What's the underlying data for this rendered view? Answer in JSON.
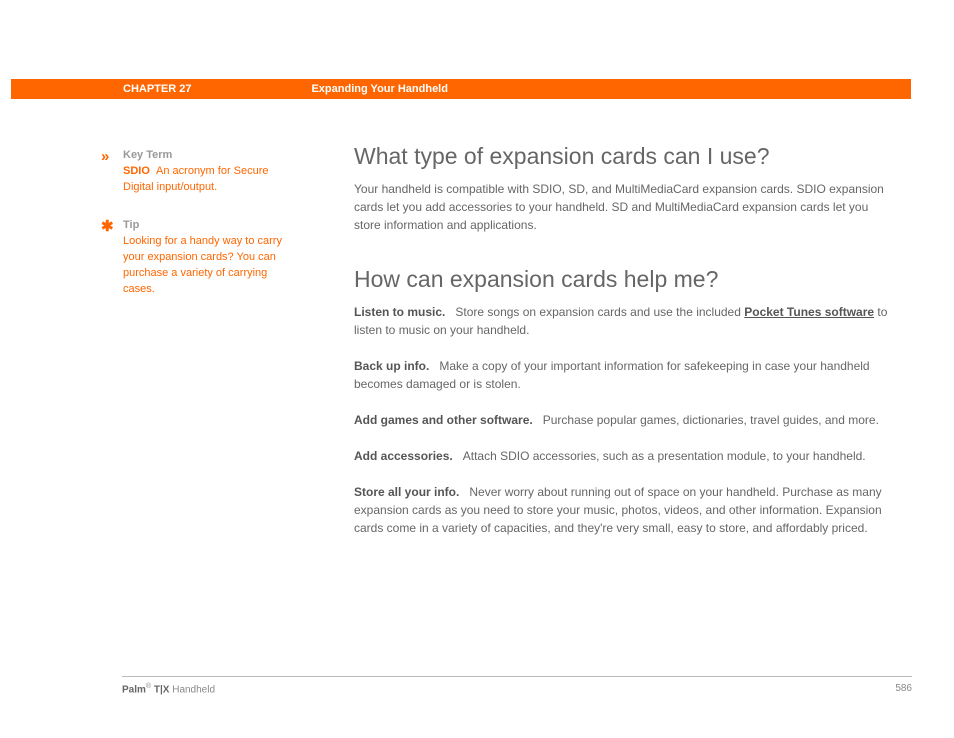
{
  "colors": {
    "accent": "#ff6600",
    "header_bg": "#ff6600",
    "header_text": "#ffffff",
    "body_text": "#666666",
    "muted_text": "#999999",
    "link_text": "#555555",
    "rule": "#bbbbbb",
    "background": "#ffffff"
  },
  "header": {
    "chapter_label": "CHAPTER 27",
    "chapter_title": "Expanding Your Handheld"
  },
  "sidebar": {
    "key_term": {
      "icon": "»",
      "label": "Key Term",
      "term": "SDIO",
      "definition": "An acronym for Secure Digital input/output."
    },
    "tip": {
      "icon": "✱",
      "label": "Tip",
      "body": "Looking for a handy way to carry your expansion cards? You can purchase a variety of carrying cases."
    }
  },
  "main": {
    "section1": {
      "heading": "What type of expansion cards can I use?",
      "body": "Your handheld is compatible with SDIO, SD, and MultiMediaCard expansion cards. SDIO expansion cards let you add accessories to your handheld. SD and MultiMediaCard expansion cards let you store information and applications."
    },
    "section2": {
      "heading": "How can expansion cards help me?",
      "items": {
        "listen": {
          "label": "Listen to music.",
          "pre": "Store songs on expansion cards and use the included ",
          "link": "Pocket Tunes software",
          "post": " to listen to music on your handheld."
        },
        "backup": {
          "label": "Back up info.",
          "body": "Make a copy of your important information for safekeeping in case your handheld becomes damaged or is stolen."
        },
        "games": {
          "label": "Add games and other software.",
          "body": "Purchase popular games, dictionaries, travel guides, and more."
        },
        "accessories": {
          "label": "Add accessories.",
          "body": "Attach SDIO accessories, such as a presentation module, to your handheld."
        },
        "store": {
          "label": "Store all your info.",
          "body": "Never worry about running out of space on your handheld. Purchase as many expansion cards as you need to store your music, photos, videos, and other information. Expansion cards come in a variety of capacities, and they're very small, easy to store, and affordably priced."
        }
      }
    }
  },
  "footer": {
    "brand_bold": "Palm",
    "reg": "®",
    "brand_rest": " T|X",
    "brand_suffix": " Handheld",
    "page_number": "586"
  }
}
